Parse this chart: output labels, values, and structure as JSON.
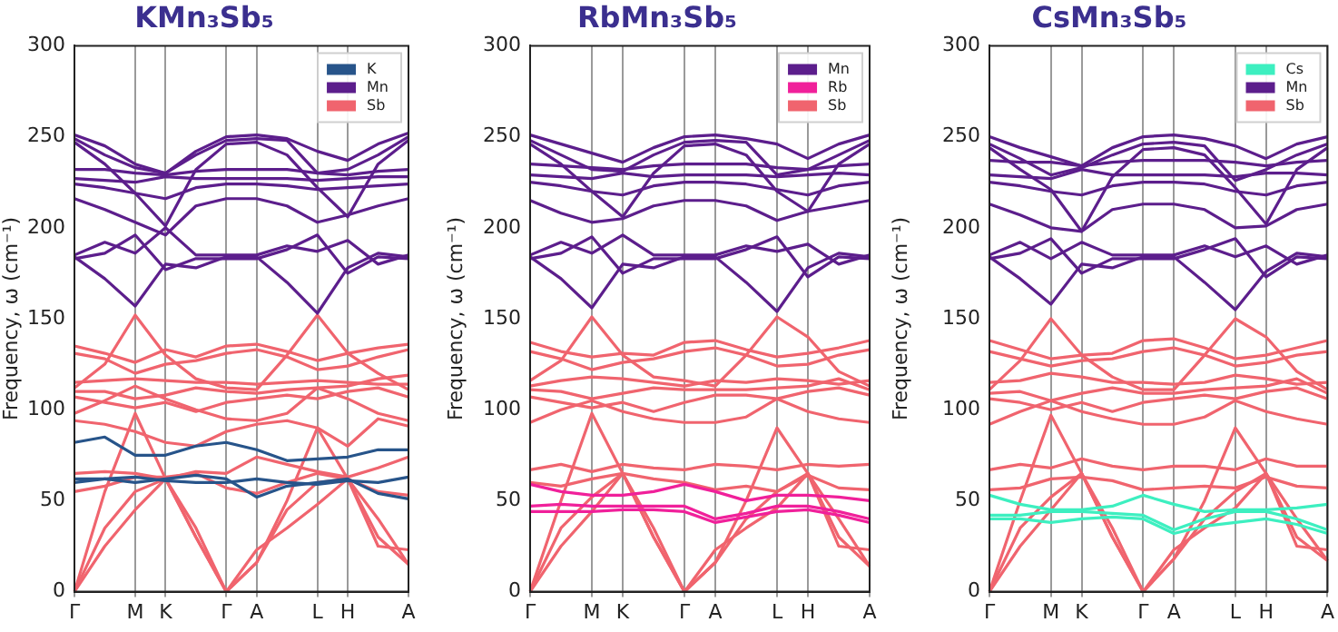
{
  "chart_data": [
    {
      "type": "line",
      "title": "KMn₃Sb₅",
      "ylabel": "Frequency, ω (cm⁻¹)",
      "categories": [
        "Γ",
        null,
        "M",
        "K",
        null,
        "Γ",
        "A",
        null,
        "L",
        "H",
        null,
        "A"
      ],
      "ylim": [
        0,
        300
      ],
      "yticks": [
        0,
        50,
        100,
        150,
        200,
        250,
        300
      ],
      "grid": "x",
      "legend": "top right",
      "marker": "none",
      "line_style": "solid",
      "series": [
        {
          "name": "K",
          "color": "#27548a",
          "values": [
            82,
            85,
            75,
            75,
            80,
            82,
            78,
            72,
            73,
            74,
            78,
            78
          ]
        },
        {
          "color": "#27548a",
          "values": [
            62,
            62,
            60,
            62,
            64,
            62,
            52,
            58,
            60,
            62,
            54,
            51
          ]
        },
        {
          "color": "#27548a",
          "values": [
            60,
            62,
            63,
            61,
            60,
            60,
            62,
            60,
            59,
            61,
            60,
            63
          ]
        },
        {
          "name": "Mn",
          "color": "#5c1e8c",
          "values": [
            251,
            245,
            235,
            230,
            242,
            250,
            251,
            249,
            242,
            237,
            246,
            252
          ]
        },
        {
          "color": "#5c1e8c",
          "values": [
            249,
            240,
            233,
            230,
            240,
            248,
            249,
            248,
            230,
            232,
            240,
            250
          ]
        },
        {
          "color": "#5c1e8c",
          "values": [
            232,
            232,
            230,
            229,
            231,
            232,
            232,
            232,
            230,
            229,
            231,
            232
          ]
        },
        {
          "color": "#5c1e8c",
          "values": [
            227,
            226,
            225,
            228,
            227,
            227,
            227,
            227,
            226,
            227,
            228,
            228
          ]
        },
        {
          "color": "#5c1e8c",
          "values": [
            224,
            222,
            219,
            216,
            222,
            224,
            224,
            223,
            221,
            222,
            223,
            224
          ]
        },
        {
          "color": "#5c1e8c",
          "values": [
            216,
            210,
            203,
            196,
            212,
            216,
            216,
            212,
            203,
            207,
            212,
            216
          ]
        },
        {
          "color": "#5c1e8c",
          "values": [
            247,
            235,
            219,
            201,
            232,
            246,
            247,
            240,
            222,
            206,
            235,
            248
          ]
        },
        {
          "color": "#5c1e8c",
          "values": [
            185,
            192,
            186,
            200,
            185,
            185,
            185,
            190,
            187,
            193,
            180,
            185
          ]
        },
        {
          "color": "#5c1e8c",
          "values": [
            184,
            172,
            157,
            180,
            178,
            184,
            184,
            170,
            153,
            178,
            186,
            184
          ]
        },
        {
          "color": "#5c1e8c",
          "values": [
            183,
            186,
            196,
            177,
            183,
            183,
            183,
            188,
            196,
            175,
            184,
            183
          ]
        },
        {
          "name": "Sb",
          "color": "#f0646e",
          "values": [
            135,
            131,
            126,
            133,
            129,
            135,
            136,
            132,
            127,
            131,
            134,
            136
          ]
        },
        {
          "color": "#f0646e",
          "values": [
            131,
            128,
            120,
            125,
            127,
            131,
            133,
            129,
            122,
            124,
            129,
            133
          ]
        },
        {
          "color": "#f0646e",
          "values": [
            112,
            125,
            152,
            130,
            117,
            112,
            111,
            130,
            152,
            131,
            120,
            111
          ]
        },
        {
          "color": "#f0646e",
          "values": [
            115,
            116,
            117,
            116,
            115,
            115,
            114,
            115,
            116,
            115,
            114,
            114
          ]
        },
        {
          "color": "#f0646e",
          "values": [
            110,
            110,
            106,
            108,
            112,
            110,
            109,
            111,
            112,
            113,
            117,
            119
          ]
        },
        {
          "color": "#f0646e",
          "values": [
            107,
            104,
            101,
            104,
            99,
            104,
            106,
            108,
            106,
            110,
            112,
            107
          ]
        },
        {
          "color": "#f0646e",
          "values": [
            98,
            105,
            113,
            106,
            100,
            95,
            94,
            98,
            112,
            106,
            98,
            94
          ]
        },
        {
          "color": "#f0646e",
          "values": [
            94,
            92,
            88,
            82,
            80,
            88,
            92,
            94,
            90,
            80,
            95,
            91
          ]
        },
        {
          "color": "#f0646e",
          "values": [
            65,
            66,
            65,
            62,
            66,
            65,
            74,
            70,
            66,
            63,
            68,
            74
          ]
        },
        {
          "color": "#f0646e",
          "values": [
            55,
            58,
            63,
            63,
            65,
            57,
            54,
            60,
            65,
            62,
            55,
            53
          ]
        },
        {
          "color": "#f0646e",
          "values": [
            0,
            55,
            98,
            62,
            30,
            0,
            16,
            50,
            90,
            62,
            40,
            15
          ]
        },
        {
          "color": "#f0646e",
          "values": [
            0,
            35,
            55,
            62,
            35,
            0,
            16,
            45,
            60,
            62,
            30,
            15
          ]
        },
        {
          "color": "#f0646e",
          "values": [
            0,
            25,
            45,
            62,
            30,
            0,
            23,
            35,
            48,
            62,
            25,
            23
          ]
        }
      ]
    },
    {
      "type": "line",
      "title": "RbMn₃Sb₅",
      "ylabel": "Frequency, ω (cm⁻¹)",
      "categories": [
        "Γ",
        null,
        "M",
        "K",
        null,
        "Γ",
        "A",
        null,
        "L",
        "H",
        null,
        "A"
      ],
      "ylim": [
        0,
        300
      ],
      "yticks": [
        0,
        50,
        100,
        150,
        200,
        250,
        300
      ],
      "grid": "x",
      "legend": "top right",
      "marker": "none",
      "line_style": "solid",
      "series": [
        {
          "name": "Mn",
          "color": "#5c1e8c",
          "values": [
            251,
            246,
            241,
            236,
            244,
            250,
            251,
            249,
            246,
            238,
            246,
            251
          ]
        },
        {
          "color": "#5c1e8c",
          "values": [
            248,
            240,
            232,
            231,
            240,
            247,
            248,
            247,
            229,
            232,
            240,
            248
          ]
        },
        {
          "color": "#5c1e8c",
          "values": [
            235,
            234,
            233,
            232,
            234,
            235,
            235,
            235,
            233,
            232,
            234,
            235
          ]
        },
        {
          "color": "#5c1e8c",
          "values": [
            229,
            228,
            227,
            230,
            228,
            229,
            229,
            229,
            228,
            229,
            230,
            229
          ]
        },
        {
          "color": "#5c1e8c",
          "values": [
            225,
            223,
            220,
            218,
            223,
            225,
            225,
            224,
            221,
            218,
            223,
            225
          ]
        },
        {
          "color": "#5c1e8c",
          "values": [
            215,
            208,
            203,
            205,
            212,
            215,
            215,
            212,
            204,
            209,
            212,
            215
          ]
        },
        {
          "color": "#5c1e8c",
          "values": [
            246,
            235,
            220,
            206,
            230,
            245,
            246,
            240,
            220,
            209,
            235,
            246
          ]
        },
        {
          "color": "#5c1e8c",
          "values": [
            185,
            192,
            186,
            196,
            185,
            185,
            185,
            190,
            187,
            191,
            180,
            185
          ]
        },
        {
          "color": "#5c1e8c",
          "values": [
            184,
            172,
            156,
            180,
            178,
            184,
            184,
            170,
            154,
            178,
            186,
            184
          ]
        },
        {
          "color": "#5c1e8c",
          "values": [
            183,
            186,
            195,
            175,
            183,
            183,
            183,
            188,
            195,
            173,
            184,
            183
          ]
        },
        {
          "name": "Rb",
          "color": "#f0209a",
          "values": [
            59,
            55,
            53,
            53,
            55,
            59,
            55,
            50,
            53,
            53,
            52,
            50
          ]
        },
        {
          "color": "#f0209a",
          "values": [
            47,
            48,
            47,
            47,
            47,
            47,
            40,
            43,
            47,
            47,
            44,
            40
          ]
        },
        {
          "color": "#f0209a",
          "values": [
            44,
            44,
            44,
            45,
            45,
            44,
            38,
            41,
            44,
            45,
            42,
            38
          ]
        },
        {
          "name": "Sb",
          "color": "#f0646e",
          "values": [
            137,
            132,
            129,
            131,
            130,
            137,
            138,
            133,
            129,
            131,
            134,
            138
          ]
        },
        {
          "color": "#f0646e",
          "values": [
            132,
            128,
            122,
            126,
            128,
            132,
            134,
            130,
            124,
            125,
            130,
            133
          ]
        },
        {
          "color": "#f0646e",
          "values": [
            116,
            127,
            151,
            130,
            118,
            116,
            113,
            130,
            151,
            140,
            121,
            113
          ]
        },
        {
          "color": "#f0646e",
          "values": [
            113,
            116,
            118,
            117,
            115,
            113,
            116,
            115,
            117,
            116,
            114,
            116
          ]
        },
        {
          "color": "#f0646e",
          "values": [
            111,
            110,
            106,
            109,
            112,
            111,
            111,
            111,
            112,
            113,
            117,
            111
          ]
        },
        {
          "color": "#f0646e",
          "values": [
            107,
            104,
            101,
            104,
            99,
            104,
            108,
            108,
            106,
            110,
            112,
            108
          ]
        },
        {
          "color": "#f0646e",
          "values": [
            93,
            100,
            105,
            99,
            95,
            93,
            93,
            96,
            106,
            99,
            95,
            93
          ]
        },
        {
          "color": "#f0646e",
          "values": [
            67,
            70,
            66,
            70,
            68,
            67,
            70,
            69,
            67,
            70,
            69,
            70
          ]
        },
        {
          "color": "#f0646e",
          "values": [
            60,
            58,
            62,
            65,
            62,
            60,
            56,
            58,
            55,
            64,
            57,
            56
          ]
        },
        {
          "color": "#f0646e",
          "values": [
            0,
            50,
            98,
            65,
            30,
            0,
            16,
            50,
            90,
            65,
            40,
            14
          ]
        },
        {
          "color": "#f0646e",
          "values": [
            0,
            35,
            52,
            65,
            35,
            0,
            16,
            40,
            55,
            65,
            30,
            14
          ]
        },
        {
          "color": "#f0646e",
          "values": [
            0,
            25,
            44,
            65,
            30,
            0,
            23,
            35,
            46,
            65,
            25,
            23
          ]
        }
      ]
    },
    {
      "type": "line",
      "title": "CsMn₃Sb₅",
      "ylabel": "Frequency, ω (cm⁻¹)",
      "categories": [
        "Γ",
        null,
        "M",
        "K",
        null,
        "Γ",
        "A",
        null,
        "L",
        "H",
        null,
        "A"
      ],
      "ylim": [
        0,
        300
      ],
      "yticks": [
        0,
        50,
        100,
        150,
        200,
        250,
        300
      ],
      "grid": "x",
      "legend": "top right",
      "marker": "none",
      "line_style": "solid",
      "series": [
        {
          "name": "Cs",
          "color": "#3defc0",
          "values": [
            53,
            48,
            45,
            45,
            47,
            53,
            48,
            44,
            45,
            45,
            46,
            48
          ]
        },
        {
          "color": "#3defc0",
          "values": [
            42,
            42,
            44,
            44,
            43,
            42,
            34,
            40,
            44,
            44,
            40,
            34
          ]
        },
        {
          "color": "#3defc0",
          "values": [
            40,
            40,
            38,
            40,
            41,
            40,
            32,
            36,
            38,
            40,
            37,
            32
          ]
        },
        {
          "name": "Mn",
          "color": "#5c1e8c",
          "values": [
            250,
            244,
            239,
            234,
            244,
            250,
            251,
            249,
            245,
            238,
            246,
            250
          ]
        },
        {
          "color": "#5c1e8c",
          "values": [
            246,
            238,
            229,
            233,
            240,
            246,
            247,
            245,
            226,
            232,
            240,
            246
          ]
        },
        {
          "color": "#5c1e8c",
          "values": [
            237,
            236,
            236,
            234,
            236,
            237,
            237,
            237,
            236,
            234,
            236,
            237
          ]
        },
        {
          "color": "#5c1e8c",
          "values": [
            229,
            228,
            227,
            232,
            229,
            229,
            229,
            229,
            228,
            230,
            230,
            229
          ]
        },
        {
          "color": "#5c1e8c",
          "values": [
            225,
            223,
            220,
            218,
            223,
            225,
            225,
            224,
            220,
            218,
            223,
            225
          ]
        },
        {
          "color": "#5c1e8c",
          "values": [
            213,
            207,
            200,
            198,
            210,
            213,
            213,
            210,
            200,
            201,
            210,
            213
          ]
        },
        {
          "color": "#5c1e8c",
          "values": [
            244,
            232,
            221,
            198,
            228,
            243,
            244,
            240,
            222,
            202,
            232,
            244
          ]
        },
        {
          "color": "#5c1e8c",
          "values": [
            185,
            192,
            183,
            192,
            185,
            185,
            185,
            190,
            184,
            190,
            180,
            185
          ]
        },
        {
          "color": "#5c1e8c",
          "values": [
            184,
            172,
            158,
            180,
            178,
            184,
            184,
            170,
            155,
            176,
            186,
            184
          ]
        },
        {
          "color": "#5c1e8c",
          "values": [
            183,
            186,
            194,
            175,
            183,
            183,
            183,
            188,
            194,
            173,
            184,
            183
          ]
        },
        {
          "name": "Sb",
          "color": "#f0646e",
          "values": [
            138,
            133,
            128,
            130,
            131,
            138,
            139,
            134,
            128,
            130,
            134,
            138
          ]
        },
        {
          "color": "#f0646e",
          "values": [
            132,
            128,
            124,
            127,
            128,
            132,
            134,
            130,
            124,
            126,
            130,
            132
          ]
        },
        {
          "color": "#f0646e",
          "values": [
            111,
            127,
            150,
            130,
            118,
            111,
            111,
            130,
            150,
            140,
            121,
            111
          ]
        },
        {
          "color": "#f0646e",
          "values": [
            115,
            116,
            120,
            118,
            115,
            115,
            114,
            115,
            119,
            117,
            114,
            115
          ]
        },
        {
          "color": "#f0646e",
          "values": [
            109,
            110,
            105,
            109,
            112,
            109,
            109,
            111,
            112,
            113,
            117,
            109
          ]
        },
        {
          "color": "#f0646e",
          "values": [
            106,
            104,
            100,
            104,
            99,
            104,
            106,
            108,
            106,
            110,
            112,
            106
          ]
        },
        {
          "color": "#f0646e",
          "values": [
            92,
            99,
            105,
            99,
            95,
            92,
            92,
            96,
            105,
            99,
            95,
            92
          ]
        },
        {
          "color": "#f0646e",
          "values": [
            67,
            70,
            68,
            73,
            69,
            67,
            69,
            69,
            67,
            73,
            69,
            69
          ]
        },
        {
          "color": "#f0646e",
          "values": [
            56,
            57,
            62,
            63,
            61,
            56,
            57,
            58,
            57,
            63,
            58,
            57
          ]
        },
        {
          "color": "#f0646e",
          "values": [
            0,
            50,
            97,
            65,
            30,
            0,
            18,
            50,
            90,
            65,
            40,
            17
          ]
        },
        {
          "color": "#f0646e",
          "values": [
            0,
            35,
            52,
            65,
            35,
            0,
            18,
            40,
            55,
            65,
            30,
            17
          ]
        },
        {
          "color": "#f0646e",
          "values": [
            0,
            25,
            45,
            65,
            30,
            0,
            23,
            35,
            46,
            65,
            25,
            23
          ]
        }
      ]
    }
  ]
}
